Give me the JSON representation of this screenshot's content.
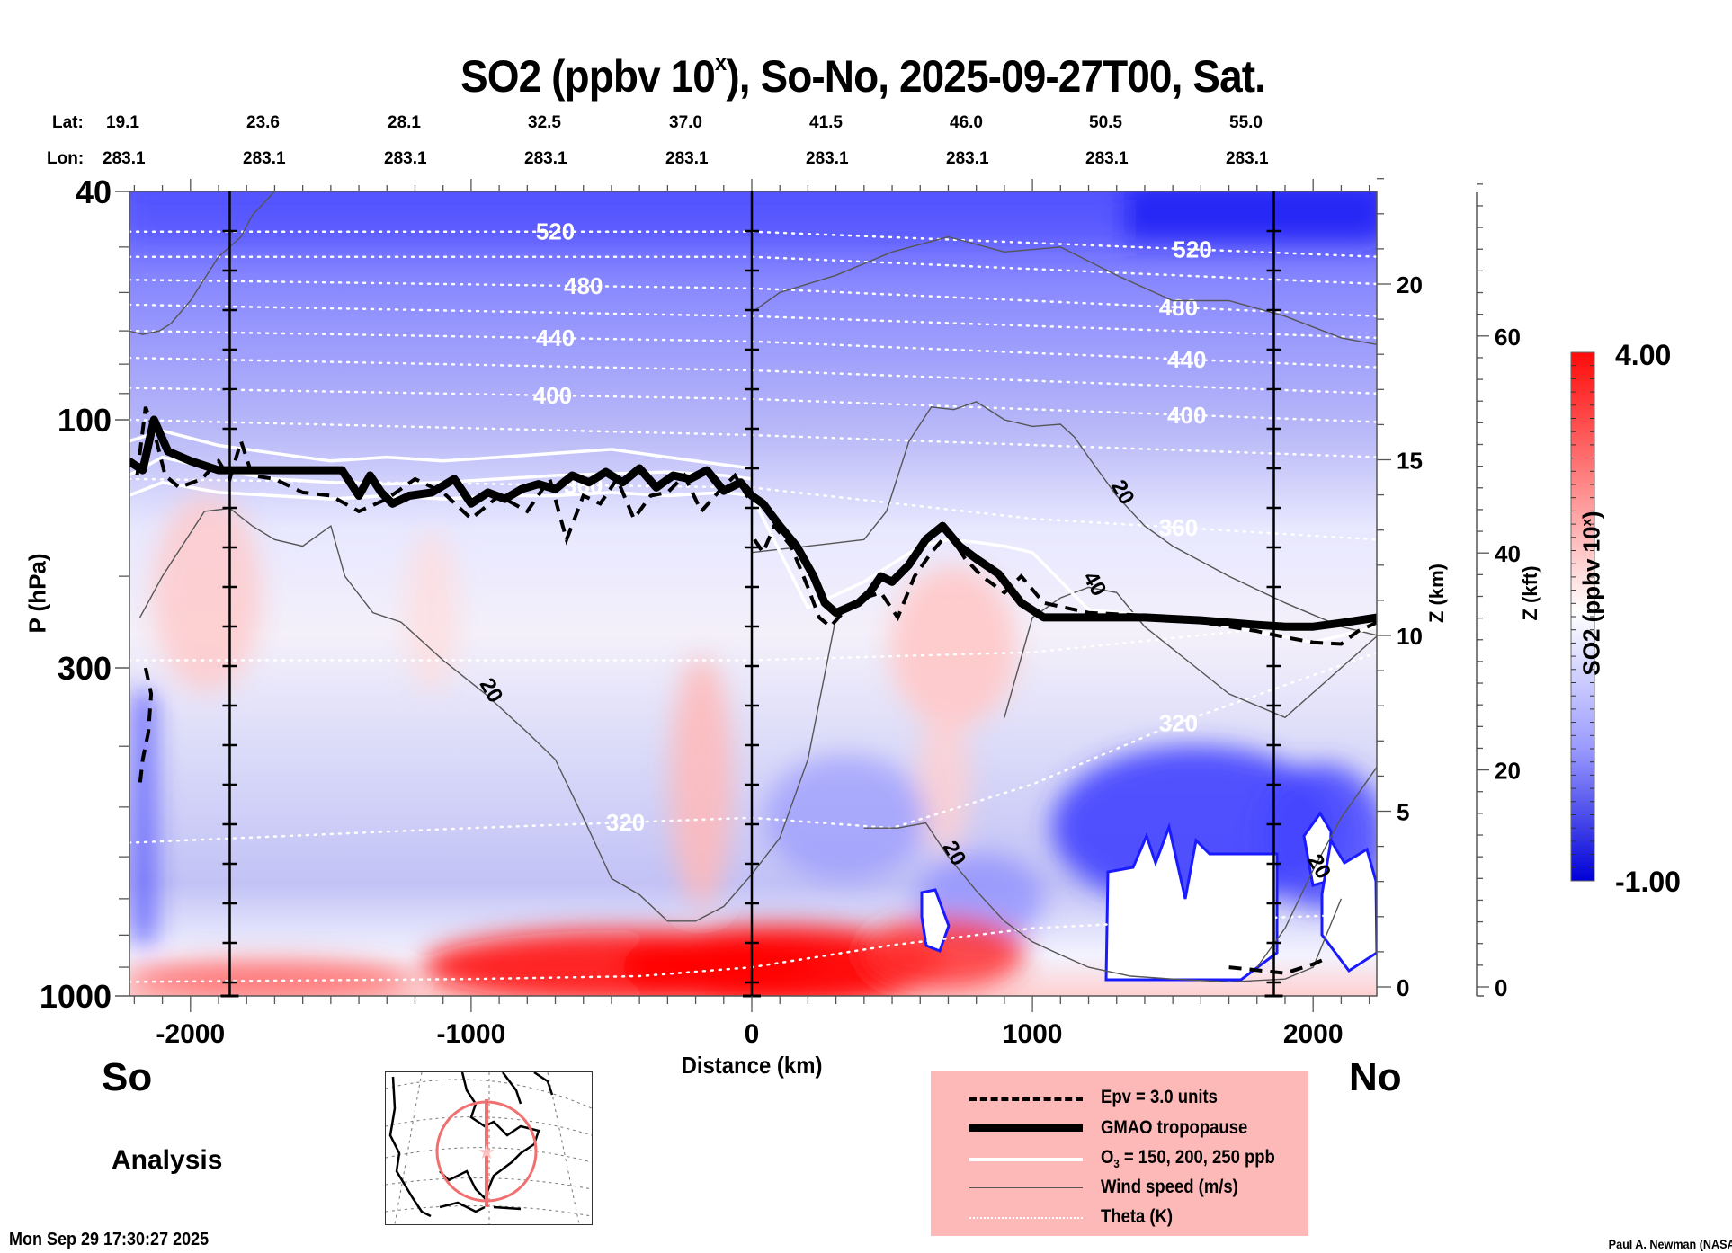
{
  "header": {
    "title_main": "SO2 (ppbv 10",
    "title_sup": "x",
    "title_rest": "), So-No, 2025-09-27T00, Sat.",
    "lat_label": "Lat:",
    "lon_label": "Lon:",
    "lats": [
      "19.1",
      "23.6",
      "28.1",
      "32.5",
      "37.0",
      "41.5",
      "46.0",
      "50.5",
      "55.0"
    ],
    "lons": [
      "283.1",
      "283.1",
      "283.1",
      "283.1",
      "283.1",
      "283.1",
      "283.1",
      "283.1",
      "283.1"
    ]
  },
  "labels": {
    "south": "So",
    "north": "No",
    "analysis": "Analysis",
    "timestamp": "Mon Sep 29 17:30:27 2025",
    "credit": "Paul A. Newman (NASA"
  },
  "legend": {
    "items": [
      {
        "name": "epv",
        "label": "Epv = 3.0 units",
        "style": "dashed-thick"
      },
      {
        "name": "tropopause",
        "label": "GMAO tropopause",
        "style": "solid-heavy"
      },
      {
        "name": "ozone",
        "label_pre": "O",
        "label_sub": "3",
        "label_post": " = 150, 200, 250 ppb",
        "style": "solid-white"
      },
      {
        "name": "wind",
        "label": "Wind speed (m/s)",
        "style": "solid-thin-gray"
      },
      {
        "name": "theta",
        "label": "Theta (K)",
        "style": "dotted-white"
      }
    ]
  },
  "colors": {
    "high": "#ff0000",
    "mid": "#ffffff",
    "low": "#0000e0",
    "legend_bg": "#fdb8b8",
    "map_track": "#f07070"
  },
  "chart_data": {
    "type": "heatmap",
    "title": "SO2 (ppbv 10^x), So-No, 2025-09-27T00, Sat.",
    "xlabel": "Distance (km)",
    "ylabel": "P (hPa)",
    "y2label": "Z (km)",
    "y3label": "Z (kft)",
    "colorbar_label": "SO2 (ppbv 10^x)",
    "xlim": [
      -2220,
      2230
    ],
    "ylim": [
      1000,
      40
    ],
    "x_ticks": [
      -2000,
      -1000,
      0,
      1000,
      2000
    ],
    "x_tick_labels": [
      "-2000",
      "-1000",
      "0",
      "1000",
      "2000"
    ],
    "y_ticks": [
      40,
      100,
      300,
      1000
    ],
    "y_tick_labels": [
      "40",
      "100",
      "300",
      "1000"
    ],
    "z_km_ticks": [
      0,
      5,
      10,
      15,
      20
    ],
    "z_km_tick_labels": [
      "0",
      "5",
      "10",
      "15",
      "20"
    ],
    "z_kft_ticks": [
      0,
      20,
      40,
      60
    ],
    "z_kft_tick_labels": [
      "0",
      "20",
      "40",
      "60"
    ],
    "colorbar": {
      "min": -1.0,
      "max": 4.0,
      "min_label": "-1.00",
      "max_label": "4.00",
      "levels": 40
    },
    "vertical_markers_km": [
      -1860,
      0,
      1860
    ],
    "tropopause": {
      "name": "GMAO tropopause",
      "x": [
        -2220,
        -2170,
        -2130,
        -2080,
        -2000,
        -1900,
        -1830,
        -1750,
        -1460,
        -1400,
        -1360,
        -1320,
        -1280,
        -1220,
        -1140,
        -1060,
        -1000,
        -940,
        -880,
        -820,
        -760,
        -700,
        -640,
        -580,
        -520,
        -460,
        -400,
        -340,
        -280,
        -220,
        -160,
        -100,
        -40,
        0,
        40,
        100,
        160,
        220,
        260,
        300,
        340,
        380,
        420,
        460,
        500,
        560,
        620,
        680,
        740,
        800,
        880,
        960,
        1040,
        1200,
        1400,
        1600,
        1800,
        1900,
        2000,
        2100,
        2230
      ],
      "p": [
        120,
        125,
        100,
        115,
        120,
        125,
        125,
        125,
        125,
        140,
        128,
        138,
        145,
        140,
        138,
        130,
        145,
        138,
        142,
        136,
        133,
        136,
        128,
        132,
        126,
        132,
        124,
        135,
        128,
        130,
        125,
        137,
        132,
        140,
        145,
        160,
        175,
        200,
        225,
        235,
        230,
        225,
        215,
        200,
        205,
        190,
        170,
        160,
        175,
        185,
        198,
        225,
        240,
        240,
        240,
        243,
        248,
        250,
        250,
        246,
        240
      ]
    },
    "epv_3pvu": {
      "name": "Epv = 3.0 units",
      "segments": [
        {
          "x": [
            -2190,
            -2160,
            -2130,
            -2090,
            -2040,
            -1960,
            -1900,
            -1860,
            -1820,
            -1780,
            -1700,
            -1600,
            -1500,
            -1400,
            -1300,
            -1200,
            -1100,
            -1000,
            -900,
            -800,
            -720,
            -660,
            -600,
            -540,
            -480,
            -420,
            -360,
            -300,
            -240,
            -180,
            -120,
            -60,
            0
          ],
          "p": [
            128,
            95,
            105,
            128,
            135,
            130,
            120,
            130,
            110,
            128,
            130,
            138,
            140,
            150,
            142,
            130,
            138,
            155,
            140,
            150,
            130,
            170,
            140,
            145,
            130,
            155,
            140,
            138,
            128,
            150,
            138,
            128,
            145
          ]
        },
        {
          "x": [
            10,
            40,
            80,
            140,
            200,
            240,
            280,
            340,
            400,
            460,
            520,
            580,
            640,
            700,
            760,
            820,
            900,
            960,
            1040,
            1200,
            1400,
            1600,
            1800,
            1900,
            2000,
            2100,
            2160,
            2230
          ],
          "p": [
            170,
            180,
            160,
            175,
            210,
            240,
            250,
            230,
            220,
            215,
            240,
            200,
            180,
            165,
            185,
            200,
            215,
            200,
            225,
            235,
            238,
            245,
            255,
            262,
            268,
            270,
            255,
            245
          ]
        },
        {
          "x": [
            -2160,
            -2140,
            -2150,
            -2170,
            -2180
          ],
          "p": [
            300,
            330,
            380,
            420,
            460
          ]
        },
        {
          "x": [
            1700,
            1800,
            1900,
            1950,
            2000,
            2050
          ],
          "p": [
            900,
            910,
            920,
            905,
            890,
            870
          ]
        }
      ]
    },
    "ozone_contours": {
      "name": "O3 = 150, 200, 250 ppb",
      "lines": [
        {
          "level": 150,
          "x": [
            -2220,
            -2100,
            -1900,
            -1700,
            -1500,
            -1300,
            -1100,
            -900,
            -700,
            -500,
            -300,
            -100,
            0,
            200,
            400,
            600,
            700,
            800,
            900,
            1000,
            1200,
            1500,
            1800,
            2000,
            2230
          ],
          "p": [
            140,
            132,
            138,
            140,
            142,
            140,
            142,
            140,
            140,
            138,
            140,
            138,
            140,
            230,
            205,
            175,
            170,
            172,
            175,
            180,
            232,
            240,
            255,
            268,
            250
          ]
        },
        {
          "level": 200,
          "x": [
            -2220,
            -2100,
            -1900,
            -1700,
            -1500,
            -1300,
            -1100,
            -900,
            -700,
            -500,
            -300,
            -100,
            0
          ],
          "p": [
            128,
            118,
            125,
            130,
            132,
            133,
            132,
            130,
            128,
            127,
            126,
            128,
            130
          ]
        },
        {
          "level": 250,
          "x": [
            -2220,
            -2100,
            -1900,
            -1700,
            -1500,
            -1300,
            -1100,
            -900,
            -700,
            -500,
            -300,
            -100,
            0
          ],
          "p": [
            110,
            105,
            112,
            116,
            120,
            118,
            120,
            118,
            116,
            114,
            118,
            122,
            124
          ]
        }
      ]
    },
    "theta_contours": {
      "name": "Theta (K)",
      "lines": [
        {
          "level": 520,
          "label": "520",
          "x": [
            -2220,
            0,
            2230
          ],
          "p": [
            47,
            47,
            52
          ]
        },
        {
          "level": 500,
          "label": "",
          "x": [
            -2220,
            0,
            2230
          ],
          "p": [
            52,
            52,
            58
          ]
        },
        {
          "level": 480,
          "label": "480",
          "x": [
            -2220,
            0,
            2230
          ],
          "p": [
            57,
            59,
            66
          ]
        },
        {
          "level": 460,
          "label": "",
          "x": [
            -2220,
            0,
            2230
          ],
          "p": [
            63,
            66,
            72
          ]
        },
        {
          "level": 440,
          "label": "440",
          "x": [
            -2220,
            0,
            2230
          ],
          "p": [
            70,
            73,
            81
          ]
        },
        {
          "level": 420,
          "label": "",
          "x": [
            -2220,
            0,
            2230
          ],
          "p": [
            78,
            82,
            90
          ]
        },
        {
          "level": 400,
          "label": "400",
          "x": [
            -2220,
            0,
            2230
          ],
          "p": [
            88,
            92,
            101
          ]
        },
        {
          "level": 380,
          "label": "",
          "x": [
            -2220,
            0,
            2230
          ],
          "p": [
            100,
            107,
            118
          ]
        },
        {
          "level": 360,
          "label": "360",
          "x": [
            -2220,
            0,
            1000,
            2230
          ],
          "p": [
            130,
            135,
            155,
            170
          ]
        },
        {
          "level": 340,
          "label": "",
          "x": [
            -2220,
            -1000,
            0,
            1000,
            2230
          ],
          "p": [
            290,
            290,
            290,
            280,
            240
          ]
        },
        {
          "level": 320,
          "label": "320",
          "x": [
            -2220,
            -1000,
            0,
            500,
            1000,
            1500,
            2230
          ],
          "p": [
            570,
            540,
            520,
            540,
            460,
            370,
            280
          ]
        },
        {
          "level": 310,
          "label": "",
          "x": [
            -2220,
            -1000,
            -400,
            0,
            500,
            1000,
            1500,
            2230
          ],
          "p": [
            950,
            940,
            930,
            900,
            830,
            780,
            760,
            740
          ]
        }
      ]
    },
    "wind_contours": {
      "name": "Wind speed (m/s)",
      "lines": [
        {
          "level": 20,
          "label": "",
          "x": [
            -2220,
            -2170,
            -2110,
            -2070,
            -2000,
            -1900,
            -1820,
            -1780,
            -1700
          ],
          "p": [
            70,
            71,
            70,
            68,
            62,
            52,
            48,
            44,
            40
          ]
        },
        {
          "level": 20,
          "label": "20",
          "x": [
            -2180,
            -2100,
            -1950,
            -1860,
            -1780,
            -1700,
            -1600,
            -1500,
            -1450,
            -1350,
            -1250,
            -1100,
            -950,
            -800,
            -700,
            -600,
            -500,
            -400,
            -300,
            -200,
            -100,
            0,
            100,
            200,
            300
          ],
          "p": [
            240,
            200,
            150,
            148,
            160,
            170,
            175,
            160,
            200,
            235,
            245,
            290,
            330,
            380,
            420,
            520,
            650,
            690,
            760,
            760,
            720,
            640,
            560,
            420,
            240
          ]
        },
        {
          "level": 20,
          "label": "20",
          "x": [
            0,
            200,
            400,
            480,
            560,
            640,
            720,
            800,
            900,
            1000,
            1100,
            1150,
            1200,
            1300,
            1400,
            1500,
            1700,
            1900,
            2100,
            2230
          ],
          "p": [
            180,
            175,
            170,
            150,
            110,
            95,
            96,
            93,
            100,
            103,
            102,
            108,
            118,
            140,
            160,
            175,
            200,
            225,
            250,
            260
          ]
        },
        {
          "level": 20,
          "label": "",
          "x": [
            0,
            100,
            300,
            500,
            700,
            900,
            1100,
            1300,
            1500,
            1700,
            1900,
            2100,
            2230
          ],
          "p": [
            65,
            60,
            56,
            51,
            48,
            51,
            50,
            56,
            62,
            62,
            66,
            72,
            74
          ]
        },
        {
          "level": 40,
          "label": "40",
          "x": [
            900,
            1000,
            1100,
            1200,
            1300,
            1400,
            1550,
            1700,
            1900,
            2100,
            2230
          ],
          "p": [
            360,
            240,
            220,
            210,
            215,
            250,
            290,
            330,
            360,
            300,
            260
          ]
        },
        {
          "level": 20,
          "label": "20",
          "x": [
            400,
            520,
            620,
            700,
            800,
            900,
            1000,
            1100,
            1200,
            1350,
            1500,
            1700,
            1900,
            2000,
            2100
          ],
          "p": [
            540,
            540,
            530,
            600,
            680,
            760,
            820,
            860,
            900,
            930,
            940,
            950,
            940,
            900,
            700
          ]
        },
        {
          "level": 20,
          "label": "20",
          "x": [
            1800,
            1900,
            2000,
            2100,
            2230
          ],
          "p": [
            900,
            780,
            630,
            520,
            430
          ]
        }
      ]
    },
    "inset_map": {
      "region": "North America",
      "track_lon": 283.1,
      "track_lat": [
        19.1,
        55.0
      ]
    }
  }
}
